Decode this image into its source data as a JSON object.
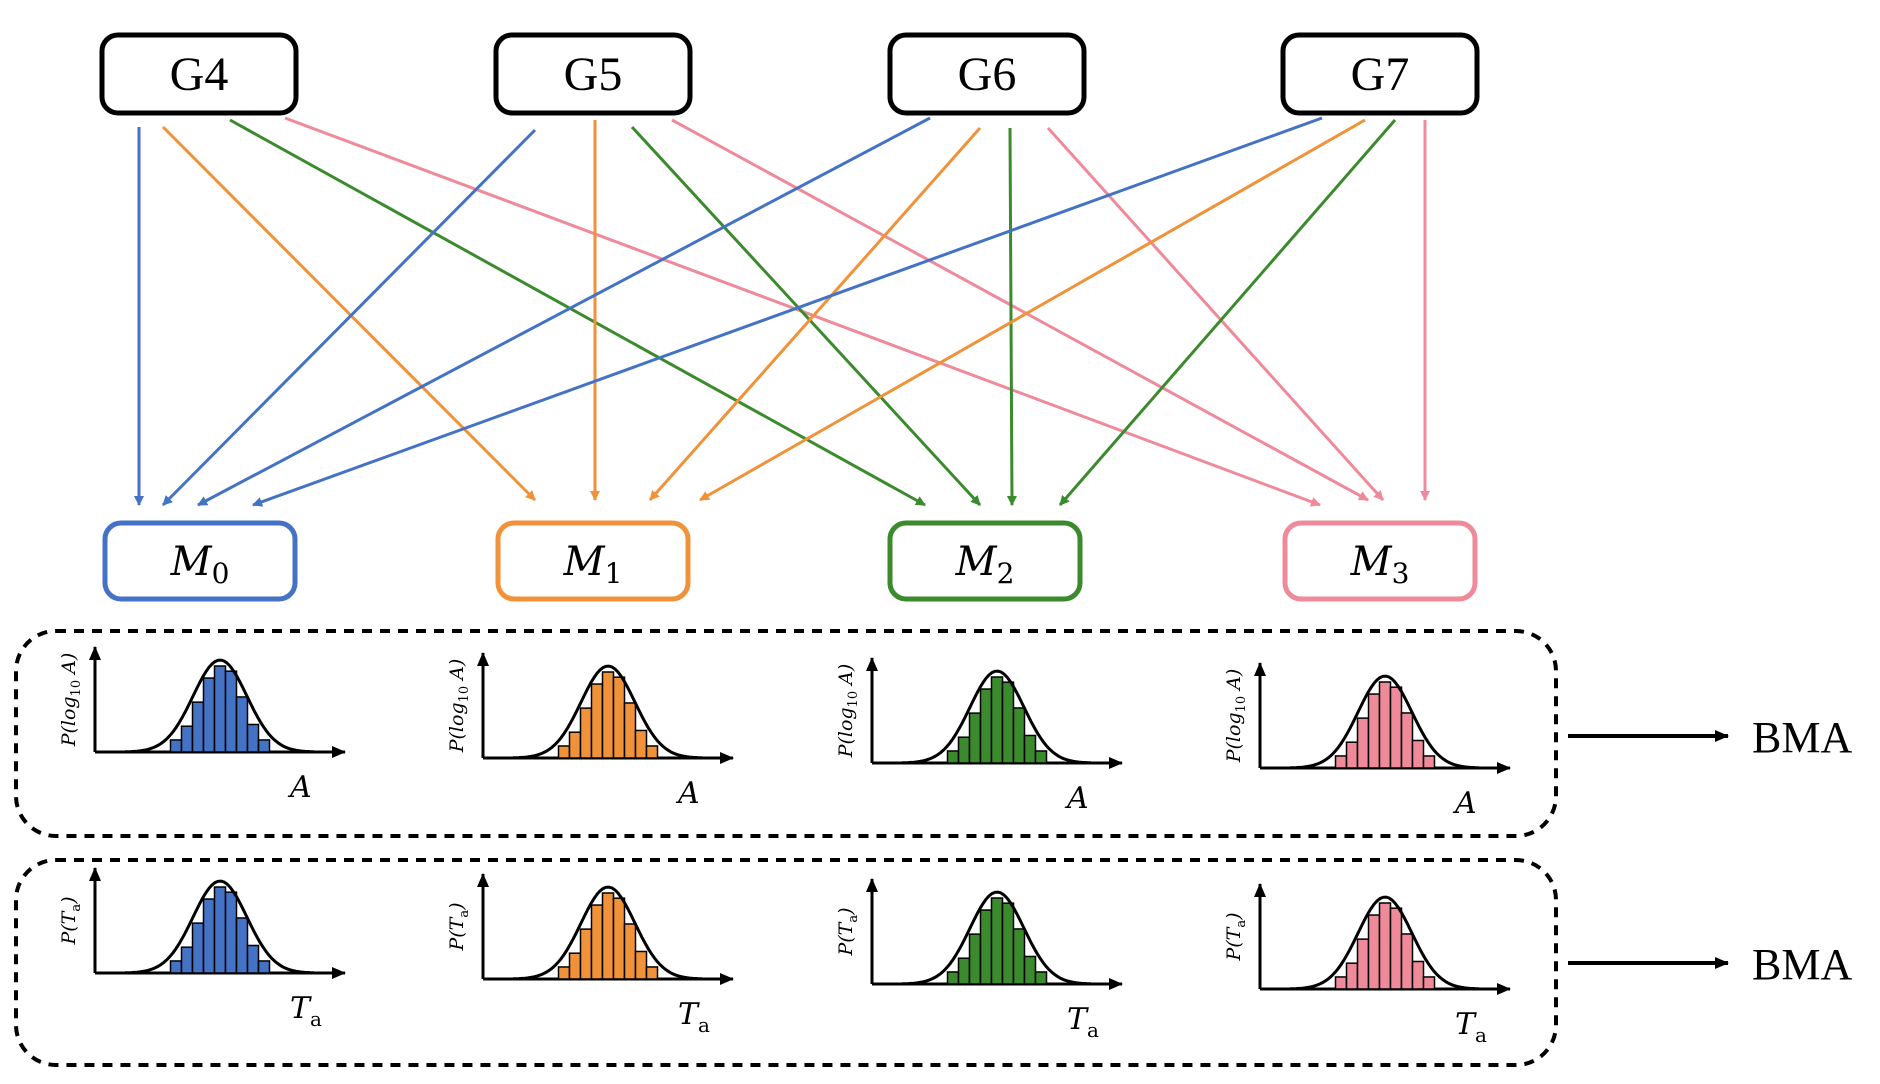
{
  "colors": {
    "c0": "#4472C4",
    "c1": "#F0923A",
    "c2": "#3C8A2E",
    "c3": "#EE8A9A",
    "ink": "#000000"
  },
  "sources": [
    {
      "id": "G4",
      "label": "G4"
    },
    {
      "id": "G5",
      "label": "G5"
    },
    {
      "id": "G6",
      "label": "G6"
    },
    {
      "id": "G7",
      "label": "G7"
    }
  ],
  "models": [
    {
      "symbol": "M",
      "sub": "0",
      "color": "#4472C4"
    },
    {
      "symbol": "M",
      "sub": "1",
      "color": "#F0923A"
    },
    {
      "symbol": "M",
      "sub": "2",
      "color": "#3C8A2E"
    },
    {
      "symbol": "M",
      "sub": "3",
      "color": "#EE8A9A"
    }
  ],
  "rows": [
    {
      "ylabel_main": "P(log",
      "ylabel_sub": "10",
      "ylabel_tail": " A)",
      "xlabel": "A",
      "xlabel_sub": "",
      "output": "BMA"
    },
    {
      "ylabel_main": "P(T",
      "ylabel_sub": "a",
      "ylabel_tail": ")",
      "xlabel": "T",
      "xlabel_sub": "a",
      "output": "BMA"
    }
  ],
  "histogram_heights": [
    0.14,
    0.3,
    0.58,
    0.86,
    1.0,
    0.94,
    0.64,
    0.32,
    0.14
  ]
}
